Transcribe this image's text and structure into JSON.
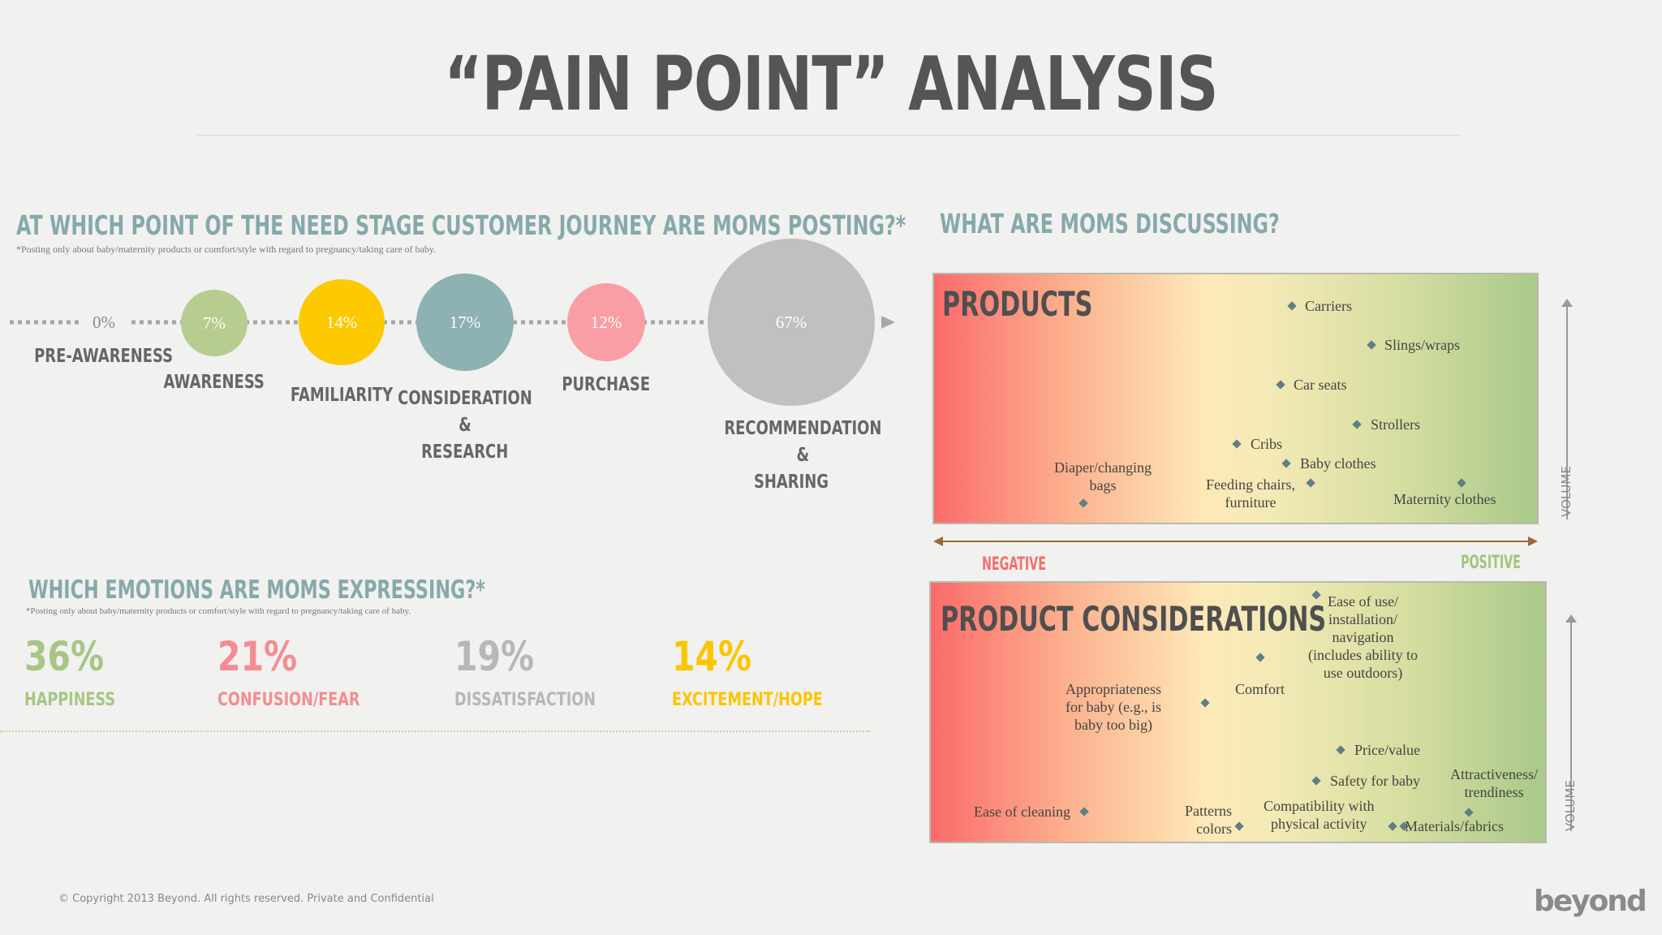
{
  "title": "“PAIN POINT” ANALYSIS",
  "journey": {
    "heading": "AT WHICH POINT OF THE NEED STAGE CUSTOMER JOURNEY ARE MOMS POSTING?*",
    "footnote": "*Posting only about baby/maternity products or comfort/style with regard to pregnancy/taking care of baby.",
    "stages": [
      {
        "pct": "0%",
        "label": "PRE-AWARENESS",
        "value": 0,
        "color": "#f1f1ef"
      },
      {
        "pct": "7%",
        "label": "AWARENESS",
        "value": 7,
        "color": "#b7cc8f"
      },
      {
        "pct": "14%",
        "label": "FAMILIARITY",
        "value": 14,
        "color": "#fdc900"
      },
      {
        "pct": "17%",
        "label": "CONSIDERATION &\nRESEARCH",
        "value": 17,
        "color": "#8eb1b3"
      },
      {
        "pct": "12%",
        "label": "PURCHASE",
        "value": 12,
        "color": "#f99ea4"
      },
      {
        "pct": "67%",
        "label": "RECOMMENDATION &\nSHARING",
        "value": 67,
        "color": "#c1bfc1"
      }
    ]
  },
  "emotions": {
    "heading": "WHICH EMOTIONS ARE MOMS EXPRESSING?*",
    "footnote": "*Posting only about baby/maternity products or comfort/style with regard to pregnancy/taking care of baby.",
    "items": [
      {
        "pct": "36%",
        "label": "HAPPINESS",
        "color": "#a8c585"
      },
      {
        "pct": "21%",
        "label": "CONFUSION/FEAR",
        "color": "#f48d91"
      },
      {
        "pct": "19%",
        "label": "DISSATISFACTION",
        "color": "#b9b6b8"
      },
      {
        "pct": "14%",
        "label": "EXCITEMENT/HOPE",
        "color": "#fbc500"
      }
    ]
  },
  "discussing": {
    "heading": "WHAT ARE MOMS DISCUSSING?",
    "negative": "NEGATIVE",
    "positive": "POSITIVE",
    "volume": "VOLUME",
    "products": {
      "title": "PRODUCTS",
      "points": [
        {
          "label": "Carriers"
        },
        {
          "label": "Slings/wraps"
        },
        {
          "label": "Car seats"
        },
        {
          "label": "Strollers"
        },
        {
          "label": "Cribs"
        },
        {
          "label": "Baby clothes"
        },
        {
          "label": "Feeding chairs,\nfurniture"
        },
        {
          "label": "Maternity clothes"
        },
        {
          "label": "Diaper/changing\nbags"
        }
      ]
    },
    "considerations": {
      "title": "PRODUCT CONSIDERATIONS",
      "points": [
        {
          "label": "Ease of use/\ninstallation/\nnavigation\n(includes ability to\nuse outdoors)"
        },
        {
          "label": "Comfort"
        },
        {
          "label": "Appropriateness\nfor baby (e.g., is\nbaby too big)"
        },
        {
          "label": "Price/value"
        },
        {
          "label": "Safety for baby"
        },
        {
          "label": "Attractiveness/\ntrendiness"
        },
        {
          "label": "Compatibility with\nphysical activity"
        },
        {
          "label": "Materials/fabrics"
        },
        {
          "label": "Patterns\ncolors"
        },
        {
          "label": "Ease of cleaning"
        }
      ]
    }
  },
  "footer": {
    "copyright": "© Copyright 2013 Beyond. All rights reserved. Private and Confidential",
    "logo": "beyond"
  }
}
